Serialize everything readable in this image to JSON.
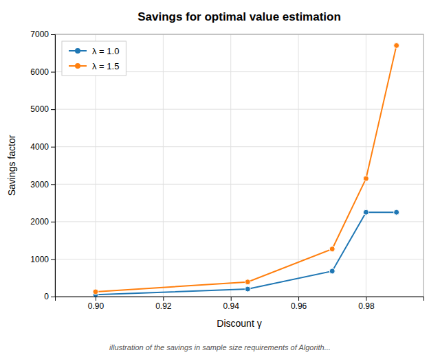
{
  "chart_data": {
    "type": "line",
    "title": "Savings for optimal value estimation",
    "xlabel": "Discount γ",
    "ylabel": "Savings factor",
    "annotations": [
      "illustration of the savings in sample size requirements of Algorith..."
    ],
    "x": [
      0.9,
      0.945,
      0.97,
      0.98,
      0.989
    ],
    "series": [
      {
        "name": "λ = 1.0",
        "color": "#1f77b4",
        "values": [
          50,
          200,
          680,
          2250,
          2250
        ]
      },
      {
        "name": "λ = 1.5",
        "color": "#ff7f0e",
        "values": [
          130,
          390,
          1270,
          3150,
          6700
        ]
      }
    ],
    "xlim": [
      0.888,
      0.997
    ],
    "xticks": [
      {
        "value": 0.9,
        "label": "0.90"
      },
      0.92,
      0.94,
      0.96,
      0.98
    ],
    "ylim": [
      0,
      7000
    ],
    "yticks": [
      0,
      1000,
      2000,
      3000,
      4000,
      5000,
      6000,
      7000
    ],
    "marker": "circle",
    "grid": true,
    "legend": "upper left"
  }
}
